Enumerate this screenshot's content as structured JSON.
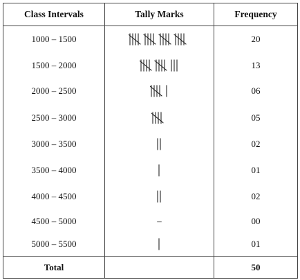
{
  "table": {
    "headers": {
      "interval": "Class Intervals",
      "tally": "Tally Marks",
      "frequency": "Frequency"
    },
    "rows": [
      {
        "interval": "1000 – 1500",
        "tally_count": 20,
        "frequency": "20"
      },
      {
        "interval": "1500 – 2000",
        "tally_count": 13,
        "frequency": "13"
      },
      {
        "interval": "2000 – 2500",
        "tally_count": 6,
        "frequency": "06"
      },
      {
        "interval": "2500 – 3000",
        "tally_count": 5,
        "frequency": "05"
      },
      {
        "interval": "3000 – 3500",
        "tally_count": 2,
        "frequency": "02"
      },
      {
        "interval": "3500 – 4000",
        "tally_count": 1,
        "frequency": "01"
      },
      {
        "interval": "4000 – 4500",
        "tally_count": 2,
        "frequency": "02"
      },
      {
        "interval": "4500 – 5000",
        "tally_count": 0,
        "frequency": "00",
        "tally_text": "–"
      },
      {
        "interval": "5000 – 5500",
        "tally_count": 1,
        "frequency": "01"
      }
    ],
    "footer": {
      "label": "Total",
      "total": "50"
    }
  }
}
